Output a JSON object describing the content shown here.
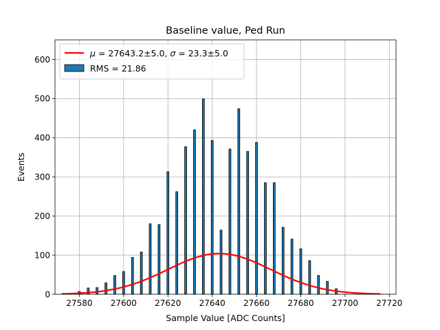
{
  "chart_data": {
    "type": "bar",
    "title": "Baseline value, Ped Run",
    "xlabel": "Sample Value [ADC Counts]",
    "ylabel": "Events",
    "xlim": [
      27569,
      27723
    ],
    "ylim": [
      0,
      650
    ],
    "xticks": [
      27580,
      27600,
      27620,
      27640,
      27660,
      27680,
      27700,
      27720
    ],
    "yticks": [
      0,
      100,
      200,
      300,
      400,
      500,
      600
    ],
    "grid": true,
    "legend_position": "top-left",
    "bar_width": 0.9,
    "bars": {
      "name": "RMS = 21.86",
      "color": "#1f77b4",
      "edge_color": "#000000",
      "x": [
        27580,
        27584,
        27588,
        27592,
        27596,
        27600,
        27604,
        27608,
        27612,
        27616,
        27620,
        27624,
        27628,
        27632,
        27636,
        27640,
        27644,
        27648,
        27652,
        27656,
        27660,
        27664,
        27668,
        27672,
        27676,
        27680,
        27684,
        27688,
        27692,
        27696
      ],
      "values": [
        7,
        16,
        17,
        29,
        48,
        58,
        94,
        108,
        180,
        178,
        313,
        262,
        377,
        420,
        499,
        393,
        164,
        371,
        474,
        365,
        388,
        285,
        285,
        171,
        141,
        116,
        86,
        48,
        33,
        14
      ]
    },
    "fit": {
      "name": "$\\mu=27643.2\\pm5.0$, $\\sigma=23.3\\pm5.0$",
      "color": "#ff0000",
      "mu": 27643.2,
      "sigma": 23.3,
      "amplitude": 104,
      "x_range": [
        27572,
        27716
      ]
    }
  },
  "legend": {
    "mu_symbol": "μ",
    "mu_text": " = 27643.2±5.0, ",
    "sigma_symbol": "σ",
    "sigma_text": " = 23.3±5.0",
    "rms_label": "RMS = 21.86"
  }
}
